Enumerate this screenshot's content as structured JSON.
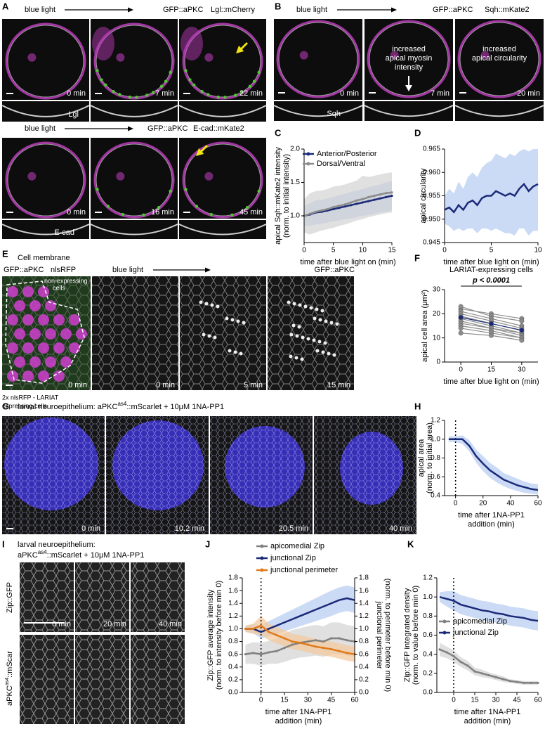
{
  "panels": {
    "A": {
      "label": "A",
      "row1": {
        "blue_light": "blue light",
        "markers": [
          "GFP::aPKC",
          "Lgl::mCherry"
        ],
        "times": [
          "0 min",
          "7 min",
          "22 min"
        ],
        "strip": "Lgl"
      },
      "row2": {
        "blue_light": "blue light",
        "markers": [
          "GFP::aPKC",
          "E-cad::mKate2"
        ],
        "times": [
          "0 min",
          "16 min",
          "45 min"
        ],
        "strip": "E-cad"
      }
    },
    "B": {
      "label": "B",
      "blue_light": "blue light",
      "markers": [
        "GFP::aPKC",
        "Sqh::mKate2"
      ],
      "annotations": [
        [
          "increased",
          "apical myosin",
          "intensity"
        ],
        [
          "increased",
          "apical circularity"
        ]
      ],
      "times": [
        "0 min",
        "7 min",
        "20 min"
      ],
      "strip": "Sqh"
    },
    "E": {
      "label": "E",
      "membrane": "Cell membrane",
      "markers": [
        "GFP::aPKC",
        "nlsRFP"
      ],
      "non_expressing": [
        "non-expressing",
        "cells"
      ],
      "lariat": [
        "2x nlsRFP - LARIAT",
        "expressing cells"
      ],
      "time0": "0 min",
      "blue_light": "blue light",
      "marker_right": "GFP::aPKC",
      "times": [
        "0 min",
        "5 min",
        "15 min"
      ]
    },
    "G": {
      "label": "G",
      "title": [
        "larval neuroepithelium: aPKC",
        "as4",
        "::mScarlet + 10μM 1NA-PP1"
      ],
      "times": [
        "0 min",
        "10.2 min",
        "20.5 min",
        "40 min"
      ]
    },
    "I": {
      "label": "I",
      "title": [
        "larval neuroepithelium:",
        "aPKC",
        "as4",
        "::mScarlet + 10μM 1NA-PP1"
      ],
      "rows": [
        [
          "Zip::GFP"
        ],
        [
          "aPKC",
          "as4",
          "::mScar"
        ]
      ],
      "times": [
        "0 min",
        "20 min",
        "40 min"
      ]
    }
  },
  "chart_data": [
    {
      "type": "line",
      "panel": "C",
      "ylabel": [
        "apical Sqh::mKate2 intensity",
        "(norm. to initial intensity)"
      ],
      "xlabel": [
        "time after blue light on (min)"
      ],
      "x": [
        0,
        1,
        2,
        3,
        4,
        5,
        6,
        7,
        8,
        9,
        10,
        11,
        12,
        13,
        14,
        15
      ],
      "xlim": [
        0,
        15
      ],
      "xticks": [
        0,
        5,
        10,
        15
      ],
      "ylim": [
        0.6,
        2.0
      ],
      "yticks": [
        {
          "value": 1,
          "label": "1.0"
        },
        1.5,
        {
          "value": 2,
          "label": "2.0"
        }
      ],
      "legend": true,
      "series": [
        {
          "name": "Anterior/Posterior",
          "color": "#1b2a78",
          "band_color": "#a9bde8",
          "values": [
            1.0,
            1.02,
            1.05,
            1.06,
            1.08,
            1.1,
            1.12,
            1.14,
            1.16,
            1.18,
            1.2,
            1.22,
            1.24,
            1.26,
            1.28,
            1.3
          ],
          "lower": [
            0.85,
            0.85,
            0.87,
            0.88,
            0.9,
            0.92,
            0.93,
            0.95,
            0.96,
            0.98,
            1.0,
            1.01,
            1.03,
            1.05,
            1.06,
            1.08
          ],
          "upper": [
            1.15,
            1.19,
            1.23,
            1.24,
            1.26,
            1.28,
            1.31,
            1.33,
            1.36,
            1.38,
            1.4,
            1.43,
            1.45,
            1.47,
            1.5,
            1.52
          ]
        },
        {
          "name": "Dorsal/Ventral",
          "color": "#8c8c8c",
          "band_color": "#d6d6d6",
          "values": [
            1.0,
            1.03,
            1.06,
            1.08,
            1.1,
            1.13,
            1.15,
            1.17,
            1.2,
            1.23,
            1.25,
            1.28,
            1.3,
            1.32,
            1.34,
            1.35
          ],
          "lower": [
            0.75,
            0.72,
            0.75,
            0.78,
            0.8,
            0.82,
            0.85,
            0.87,
            0.9,
            0.93,
            0.95,
            0.98,
            1.0,
            1.02,
            1.04,
            1.05
          ],
          "upper": [
            1.25,
            1.34,
            1.37,
            1.38,
            1.4,
            1.44,
            1.45,
            1.47,
            1.5,
            1.53,
            1.6,
            1.58,
            1.6,
            1.62,
            1.64,
            1.65
          ]
        }
      ]
    },
    {
      "type": "line",
      "panel": "D",
      "ylabel": [
        "apical circularity"
      ],
      "xlabel": [
        "time after blue light on (min)"
      ],
      "x": [
        0,
        0.5,
        1,
        1.5,
        2,
        2.5,
        3,
        3.5,
        4,
        4.5,
        5,
        5.5,
        6,
        6.5,
        7,
        7.5,
        8,
        8.5,
        9,
        9.5,
        10
      ],
      "xlim": [
        0,
        10
      ],
      "xticks": [
        0,
        5,
        10
      ],
      "ylim": [
        0.945,
        0.965
      ],
      "yticks": [
        0.945,
        {
          "value": 0.95,
          "label": "0.950"
        },
        0.955,
        {
          "value": 0.96,
          "label": "0.960"
        },
        0.965
      ],
      "series": [
        {
          "color": "#1b2a78",
          "band_color": "#b9cdf2",
          "values": [
            0.952,
            0.9525,
            0.9515,
            0.953,
            0.952,
            0.9535,
            0.954,
            0.953,
            0.9545,
            0.955,
            0.955,
            0.956,
            0.9555,
            0.955,
            0.9555,
            0.955,
            0.9565,
            0.9575,
            0.956,
            0.957,
            0.9575
          ],
          "lower": [
            0.949,
            0.9485,
            0.9475,
            0.948,
            0.9475,
            0.948,
            0.948,
            0.947,
            0.948,
            0.948,
            0.9475,
            0.948,
            0.9475,
            0.947,
            0.947,
            0.9465,
            0.948,
            0.948,
            0.9465,
            0.9475,
            0.9475
          ],
          "upper": [
            0.955,
            0.9565,
            0.9555,
            0.958,
            0.9565,
            0.959,
            0.96,
            0.959,
            0.961,
            0.962,
            0.9625,
            0.964,
            0.9635,
            0.963,
            0.964,
            0.9635,
            0.9645,
            0.965,
            0.9645,
            0.965,
            0.965
          ]
        }
      ]
    },
    {
      "type": "line",
      "panel": "F",
      "title": "LARIAT-expressing cells",
      "annotation": "p < 0.0001",
      "ylabel": [
        "apical cell area (μm²)"
      ],
      "xlabel": [
        "time after blue light on (min)"
      ],
      "x": [
        0,
        15,
        30
      ],
      "xlim": [
        -8,
        38
      ],
      "xticks": [
        0,
        15,
        30
      ],
      "ylim": [
        0,
        30
      ],
      "yticks": [
        0,
        10,
        20,
        30
      ],
      "markers": true,
      "series": [
        {
          "color": "#8c8c8c",
          "values": [
            22,
            20,
            18
          ]
        },
        {
          "color": "#8c8c8c",
          "values": [
            23,
            19,
            17
          ]
        },
        {
          "color": "#8c8c8c",
          "values": [
            21,
            18,
            15
          ]
        },
        {
          "color": "#8c8c8c",
          "values": [
            20,
            17,
            14
          ]
        },
        {
          "color": "#8c8c8c",
          "values": [
            19,
            16,
            13
          ]
        },
        {
          "color": "#8c8c8c",
          "values": [
            18,
            15,
            12
          ]
        },
        {
          "color": "#8c8c8c",
          "values": [
            17,
            14,
            12
          ]
        },
        {
          "color": "#8c8c8c",
          "values": [
            16,
            14,
            11
          ]
        },
        {
          "color": "#8c8c8c",
          "values": [
            15,
            13,
            10
          ]
        },
        {
          "color": "#8c8c8c",
          "values": [
            14,
            12,
            10
          ]
        },
        {
          "color": "#8c8c8c",
          "values": [
            12,
            11,
            9
          ]
        },
        {
          "color": "#1b2a78",
          "values": [
            18.5,
            15.9,
            13.2
          ]
        }
      ]
    },
    {
      "type": "line",
      "panel": "H",
      "ylabel": [
        "apical area",
        "(norm. to initial area)"
      ],
      "xlabel": [
        "time after 1NA-PP1",
        "addition (min)"
      ],
      "x": [
        -5,
        0,
        5,
        10,
        15,
        20,
        25,
        30,
        35,
        40,
        45,
        50,
        55,
        60
      ],
      "xlim": [
        -8,
        60
      ],
      "xticks": [
        0,
        20,
        40,
        60
      ],
      "ylim": [
        0.4,
        1.2
      ],
      "yticks": [
        0.4,
        0.6,
        0.8,
        {
          "value": 1,
          "label": "1.0"
        },
        1.2
      ],
      "vline": 0,
      "series": [
        {
          "color": "#1b2a78",
          "band_color": "#b9cdf2",
          "values": [
            1.0,
            1.0,
            1.0,
            0.93,
            0.82,
            0.74,
            0.67,
            0.62,
            0.57,
            0.54,
            0.51,
            0.49,
            0.47,
            0.46
          ],
          "lower": [
            0.97,
            0.97,
            0.95,
            0.87,
            0.75,
            0.66,
            0.59,
            0.54,
            0.5,
            0.47,
            0.45,
            0.43,
            0.42,
            0.41
          ],
          "upper": [
            1.03,
            1.03,
            1.04,
            0.99,
            0.89,
            0.82,
            0.75,
            0.7,
            0.64,
            0.61,
            0.58,
            0.55,
            0.53,
            0.52
          ]
        }
      ]
    },
    {
      "type": "line",
      "panel": "J",
      "ylabel": [
        "Zip::GFP average intensity",
        "(norm. to intensity before min 0)"
      ],
      "y2label": [
        "junctional perimeter",
        "(norm. to perimeter before min 0)"
      ],
      "xlabel": [
        "time after 1NA-PP1",
        "addition (min)"
      ],
      "x": [
        -10,
        -5,
        0,
        5,
        10,
        15,
        20,
        25,
        30,
        35,
        40,
        45,
        50,
        55,
        60
      ],
      "xlim": [
        -12,
        60
      ],
      "xticks": [
        0,
        15,
        30,
        45,
        60
      ],
      "ylim": [
        0,
        1.8
      ],
      "yticks": [
        {
          "value": 0,
          "label": "0.0"
        },
        0.2,
        0.4,
        0.6,
        0.8,
        {
          "value": 1,
          "label": "1.0"
        },
        1.2,
        1.4,
        1.6,
        1.8
      ],
      "y2lim": [
        0,
        1.8
      ],
      "y2ticks": [
        {
          "value": 0,
          "label": "0.0"
        },
        0.2,
        0.4,
        0.6,
        0.8,
        {
          "value": 1,
          "label": "1.0"
        },
        1.2,
        1.4,
        1.6,
        1.8
      ],
      "vline": 0,
      "legend": true,
      "series": [
        {
          "name": "apicomedial Zip",
          "color": "#808080",
          "band_color": "#d6d6d6",
          "values": [
            0.6,
            0.62,
            0.6,
            0.63,
            0.65,
            0.7,
            0.75,
            0.78,
            0.8,
            0.82,
            0.8,
            0.85,
            0.85,
            0.82,
            0.8
          ],
          "lower": [
            0.45,
            0.45,
            0.42,
            0.45,
            0.45,
            0.48,
            0.52,
            0.55,
            0.56,
            0.58,
            0.56,
            0.6,
            0.6,
            0.58,
            0.56
          ],
          "upper": [
            0.75,
            0.79,
            0.78,
            0.81,
            0.85,
            0.92,
            0.98,
            1.01,
            1.04,
            1.06,
            1.04,
            1.1,
            1.1,
            1.06,
            1.04
          ]
        },
        {
          "name": "junctional Zip",
          "color": "#1b2a78",
          "band_color": "#b9cdf2",
          "values": [
            1.0,
            1.0,
            0.95,
            1.0,
            1.05,
            1.1,
            1.15,
            1.2,
            1.25,
            1.3,
            1.35,
            1.4,
            1.45,
            1.48,
            1.45
          ],
          "lower": [
            0.95,
            0.93,
            0.85,
            0.88,
            0.92,
            0.96,
            1.0,
            1.04,
            1.08,
            1.12,
            1.16,
            1.2,
            1.25,
            1.28,
            1.25
          ],
          "upper": [
            1.05,
            1.07,
            1.05,
            1.12,
            1.18,
            1.24,
            1.3,
            1.36,
            1.42,
            1.48,
            1.54,
            1.6,
            1.65,
            1.68,
            1.65
          ]
        },
        {
          "name": "junctional perimeter",
          "color": "#e07b1a",
          "band_color": "#f3c9a0",
          "axis": "y2",
          "values": [
            1.0,
            1.0,
            1.05,
            0.95,
            0.9,
            0.85,
            0.8,
            0.78,
            0.75,
            0.72,
            0.7,
            0.68,
            0.65,
            0.62,
            0.6
          ],
          "lower": [
            0.95,
            0.92,
            0.9,
            0.82,
            0.77,
            0.72,
            0.68,
            0.66,
            0.63,
            0.6,
            0.58,
            0.56,
            0.53,
            0.5,
            0.48
          ],
          "upper": [
            1.05,
            1.08,
            1.2,
            1.08,
            1.03,
            0.98,
            0.92,
            0.9,
            0.87,
            0.84,
            0.82,
            0.8,
            0.77,
            0.74,
            0.72
          ]
        }
      ]
    },
    {
      "type": "line",
      "panel": "K",
      "ylabel": [
        "Zip::GFP integrated density",
        "(norm. to value before min 0)"
      ],
      "xlabel": [
        "time after 1NA-PP1",
        "addition (min)"
      ],
      "x": [
        -10,
        -5,
        0,
        5,
        10,
        15,
        20,
        25,
        30,
        35,
        40,
        45,
        50,
        55,
        60
      ],
      "xlim": [
        -12,
        60
      ],
      "xticks": [
        0,
        15,
        30,
        45,
        60
      ],
      "ylim": [
        0,
        1.2
      ],
      "yticks": [
        {
          "value": 0,
          "label": "0.0"
        },
        0.2,
        0.4,
        0.6,
        0.8,
        {
          "value": 1,
          "label": "1.0"
        },
        1.2
      ],
      "vline": 0,
      "legend": true,
      "series": [
        {
          "name": "apicomedial Zip",
          "color": "#808080",
          "band_color": "#d6d6d6",
          "values": [
            0.45,
            0.42,
            0.38,
            0.32,
            0.28,
            0.22,
            0.2,
            0.18,
            0.16,
            0.14,
            0.12,
            0.11,
            0.1,
            0.1,
            0.1
          ],
          "lower": [
            0.38,
            0.36,
            0.32,
            0.27,
            0.23,
            0.18,
            0.16,
            0.15,
            0.13,
            0.11,
            0.1,
            0.09,
            0.08,
            0.08,
            0.08
          ],
          "upper": [
            0.52,
            0.48,
            0.44,
            0.37,
            0.33,
            0.26,
            0.24,
            0.21,
            0.19,
            0.17,
            0.14,
            0.13,
            0.12,
            0.12,
            0.12
          ]
        },
        {
          "name": "junctional Zip",
          "color": "#1b2a78",
          "band_color": "#b9cdf2",
          "values": [
            1.0,
            0.98,
            0.96,
            0.92,
            0.9,
            0.88,
            0.86,
            0.85,
            0.83,
            0.82,
            0.8,
            0.79,
            0.78,
            0.76,
            0.75
          ],
          "lower": [
            0.95,
            0.9,
            0.86,
            0.82,
            0.8,
            0.78,
            0.76,
            0.75,
            0.73,
            0.72,
            0.7,
            0.69,
            0.68,
            0.66,
            0.65
          ],
          "upper": [
            1.05,
            1.06,
            1.06,
            1.02,
            1.0,
            0.98,
            0.96,
            0.95,
            0.93,
            0.92,
            0.9,
            0.89,
            0.88,
            0.86,
            0.85
          ]
        }
      ]
    }
  ]
}
